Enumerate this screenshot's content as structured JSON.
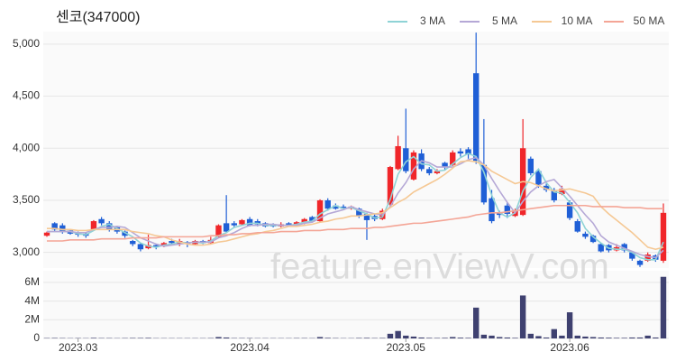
{
  "watermark": "feature.enViewV.com",
  "chart_data": [
    {
      "type": "candlestick",
      "title": "센코(347000)",
      "open": [
        3160,
        3280,
        3260,
        3210,
        3190,
        3180,
        3220,
        3320,
        3280,
        3240,
        3200,
        3110,
        3080,
        3040,
        3070,
        3060,
        3110,
        3080,
        3100,
        3080,
        3110,
        3090,
        3150,
        3280,
        3280,
        3270,
        3320,
        3300,
        3280,
        3270,
        3250,
        3280,
        3260,
        3280,
        3340,
        3300,
        3500,
        3450,
        3440,
        3420,
        3420,
        3370,
        3350,
        3320,
        3460,
        3800,
        4000,
        3700,
        3950,
        3800,
        3760,
        3860,
        3840,
        3970,
        3990,
        4720,
        3840,
        3520,
        3380,
        3450,
        3350,
        3360,
        3900,
        3780,
        3640,
        3600,
        3560,
        3480,
        3300,
        3180,
        3160,
        3080,
        3070,
        3020,
        3080,
        3000,
        2920,
        2920,
        2970,
        2920
      ],
      "high": [
        3200,
        3290,
        3280,
        3220,
        3200,
        3190,
        3310,
        3340,
        3300,
        3250,
        3210,
        3120,
        3090,
        3170,
        3080,
        3100,
        3130,
        3130,
        3110,
        3120,
        3120,
        3150,
        3270,
        3550,
        3300,
        3320,
        3340,
        3320,
        3290,
        3280,
        3290,
        3290,
        3300,
        3330,
        3350,
        3510,
        3520,
        3470,
        3460,
        3450,
        3430,
        3380,
        3370,
        3420,
        3830,
        4120,
        4380,
        3980,
        3990,
        3820,
        3800,
        3870,
        3980,
        4000,
        4010,
        5110,
        4280,
        3600,
        3400,
        3480,
        3420,
        4280,
        3920,
        3800,
        3660,
        3620,
        3640,
        3500,
        3320,
        3200,
        3170,
        3090,
        3080,
        3080,
        3090,
        3010,
        2930,
        3000,
        2980,
        3470
      ],
      "low": [
        3150,
        3200,
        3180,
        3170,
        3150,
        3140,
        3210,
        3260,
        3200,
        3180,
        3140,
        3060,
        3010,
        3030,
        3030,
        3050,
        3070,
        3060,
        3050,
        3070,
        3080,
        3080,
        3140,
        3190,
        3240,
        3260,
        3250,
        3250,
        3240,
        3240,
        3240,
        3250,
        3250,
        3270,
        3290,
        3290,
        3400,
        3410,
        3410,
        3410,
        3330,
        3120,
        3300,
        3310,
        3440,
        3790,
        3760,
        3690,
        3780,
        3740,
        3750,
        3790,
        3830,
        3920,
        3900,
        3850,
        3460,
        3280,
        3330,
        3330,
        3340,
        3350,
        3740,
        3620,
        3580,
        3480,
        3550,
        3310,
        3190,
        3130,
        3090,
        3000,
        3000,
        3010,
        3000,
        2920,
        2860,
        2910,
        2910,
        2900
      ],
      "close": [
        3190,
        3220,
        3200,
        3180,
        3170,
        3160,
        3300,
        3280,
        3220,
        3200,
        3160,
        3080,
        3030,
        3070,
        3050,
        3090,
        3090,
        3110,
        3080,
        3110,
        3090,
        3120,
        3260,
        3200,
        3260,
        3310,
        3260,
        3270,
        3250,
        3250,
        3270,
        3260,
        3290,
        3320,
        3300,
        3500,
        3420,
        3420,
        3420,
        3440,
        3350,
        3310,
        3320,
        3400,
        3820,
        4020,
        3780,
        3960,
        3800,
        3760,
        3780,
        3820,
        3960,
        3950,
        3940,
        3880,
        3480,
        3300,
        3360,
        3370,
        3400,
        4000,
        3760,
        3650,
        3600,
        3500,
        3610,
        3330,
        3200,
        3150,
        3100,
        3010,
        3020,
        3050,
        3020,
        2940,
        2880,
        2980,
        2930,
        3380
      ],
      "up_color": "#f0262a",
      "down_color": "#1f5fd6",
      "series": [
        {
          "name": "3 MA",
          "color": "#8fd3d6",
          "values": [
            3200,
            3200,
            3200,
            3200,
            3180,
            3170,
            3210,
            3250,
            3270,
            3230,
            3190,
            3150,
            3090,
            3060,
            3050,
            3070,
            3080,
            3100,
            3090,
            3100,
            3090,
            3110,
            3160,
            3190,
            3240,
            3260,
            3280,
            3280,
            3260,
            3260,
            3260,
            3260,
            3270,
            3290,
            3300,
            3370,
            3410,
            3450,
            3420,
            3430,
            3400,
            3370,
            3330,
            3340,
            3510,
            3750,
            3870,
            3920,
            3850,
            3840,
            3780,
            3790,
            3850,
            3910,
            3950,
            3920,
            3770,
            3550,
            3380,
            3340,
            3380,
            3590,
            3720,
            3800,
            3670,
            3580,
            3570,
            3480,
            3380,
            3230,
            3150,
            3090,
            3040,
            3030,
            3030,
            3000,
            2950,
            2930,
            2930,
            3100
          ]
        },
        {
          "name": "5 MA",
          "color": "#b5a8d6",
          "values": [
            3200,
            3200,
            3200,
            3200,
            3190,
            3190,
            3220,
            3240,
            3240,
            3250,
            3240,
            3190,
            3140,
            3110,
            3080,
            3060,
            3070,
            3080,
            3090,
            3100,
            3100,
            3100,
            3140,
            3160,
            3190,
            3230,
            3260,
            3260,
            3270,
            3270,
            3260,
            3260,
            3260,
            3280,
            3290,
            3330,
            3370,
            3390,
            3410,
            3440,
            3410,
            3390,
            3370,
            3360,
            3440,
            3570,
            3670,
            3800,
            3880,
            3860,
            3820,
            3820,
            3820,
            3850,
            3890,
            3910,
            3840,
            3710,
            3590,
            3480,
            3380,
            3490,
            3580,
            3640,
            3680,
            3700,
            3620,
            3540,
            3450,
            3360,
            3280,
            3160,
            3100,
            3070,
            3040,
            3010,
            2980,
            2960,
            2950,
            3020
          ]
        },
        {
          "name": "10 MA",
          "color": "#f5c894",
          "values": [
            3230,
            3230,
            3220,
            3220,
            3210,
            3210,
            3220,
            3220,
            3220,
            3220,
            3220,
            3200,
            3190,
            3180,
            3160,
            3150,
            3120,
            3100,
            3080,
            3070,
            3070,
            3080,
            3100,
            3110,
            3130,
            3150,
            3170,
            3180,
            3200,
            3210,
            3230,
            3250,
            3250,
            3260,
            3270,
            3290,
            3300,
            3320,
            3330,
            3350,
            3350,
            3360,
            3370,
            3380,
            3430,
            3480,
            3520,
            3580,
            3620,
            3660,
            3700,
            3750,
            3810,
            3870,
            3880,
            3870,
            3840,
            3780,
            3740,
            3700,
            3660,
            3680,
            3670,
            3640,
            3610,
            3590,
            3600,
            3610,
            3590,
            3570,
            3540,
            3440,
            3370,
            3310,
            3250,
            3190,
            3120,
            3050,
            3030,
            3050
          ]
        },
        {
          "name": "50 MA",
          "color": "#f4a596",
          "values": [
            3110,
            3110,
            3110,
            3120,
            3120,
            3120,
            3120,
            3130,
            3130,
            3130,
            3130,
            3140,
            3140,
            3140,
            3140,
            3150,
            3150,
            3150,
            3150,
            3150,
            3150,
            3160,
            3160,
            3170,
            3170,
            3180,
            3180,
            3190,
            3190,
            3190,
            3200,
            3200,
            3200,
            3210,
            3210,
            3210,
            3220,
            3220,
            3220,
            3230,
            3230,
            3230,
            3240,
            3240,
            3250,
            3260,
            3270,
            3280,
            3280,
            3290,
            3300,
            3310,
            3320,
            3330,
            3340,
            3360,
            3370,
            3380,
            3380,
            3390,
            3400,
            3410,
            3420,
            3430,
            3440,
            3450,
            3450,
            3450,
            3450,
            3450,
            3440,
            3440,
            3440,
            3440,
            3430,
            3430,
            3430,
            3420,
            3420,
            3420
          ]
        }
      ],
      "ylim": [
        2850,
        5120
      ],
      "yticks": [
        {
          "value": 3000,
          "label": "3,000"
        },
        {
          "value": 3500,
          "label": "3,500"
        },
        {
          "value": 4000,
          "label": "4,000"
        },
        {
          "value": 4500,
          "label": "4,500"
        },
        {
          "value": 5000,
          "label": "5,000"
        }
      ],
      "grid": true
    },
    {
      "type": "bar",
      "color": "#3f4170",
      "categories": [
        null,
        null,
        null,
        null,
        "2023.03",
        null,
        null,
        null,
        null,
        null,
        null,
        null,
        null,
        null,
        null,
        null,
        null,
        null,
        null,
        null,
        null,
        null,
        null,
        null,
        null,
        null,
        "2023.04",
        null,
        null,
        null,
        null,
        null,
        null,
        null,
        null,
        null,
        null,
        null,
        null,
        null,
        null,
        null,
        null,
        null,
        null,
        null,
        "2023.05",
        null,
        null,
        null,
        null,
        null,
        null,
        null,
        null,
        null,
        null,
        null,
        null,
        null,
        null,
        null,
        null,
        null,
        null,
        null,
        null,
        "2023.06",
        null,
        null,
        null,
        null,
        null,
        null,
        null,
        null,
        null,
        null,
        null,
        null
      ],
      "values": [
        40000,
        50000,
        40000,
        30000,
        40000,
        30000,
        60000,
        40000,
        40000,
        30000,
        40000,
        50000,
        50000,
        60000,
        30000,
        30000,
        30000,
        30000,
        30000,
        30000,
        30000,
        40000,
        150000,
        100000,
        40000,
        40000,
        40000,
        30000,
        30000,
        30000,
        30000,
        30000,
        40000,
        40000,
        30000,
        150000,
        60000,
        40000,
        30000,
        30000,
        50000,
        60000,
        40000,
        50000,
        500000,
        800000,
        300000,
        200000,
        100000,
        60000,
        50000,
        60000,
        150000,
        80000,
        60000,
        3300000,
        400000,
        300000,
        150000,
        100000,
        60000,
        4600000,
        500000,
        250000,
        100000,
        1000000,
        300000,
        2800000,
        300000,
        200000,
        150000,
        100000,
        80000,
        60000,
        60000,
        100000,
        100000,
        300000,
        100000,
        6600000
      ],
      "ylim": [
        0,
        7250000
      ],
      "yticks": [
        0,
        {
          "value": 2000000,
          "label": "2M"
        },
        {
          "value": 4000000,
          "label": "4M"
        },
        {
          "value": 6000000,
          "label": "6M"
        }
      ],
      "grid": true
    }
  ]
}
